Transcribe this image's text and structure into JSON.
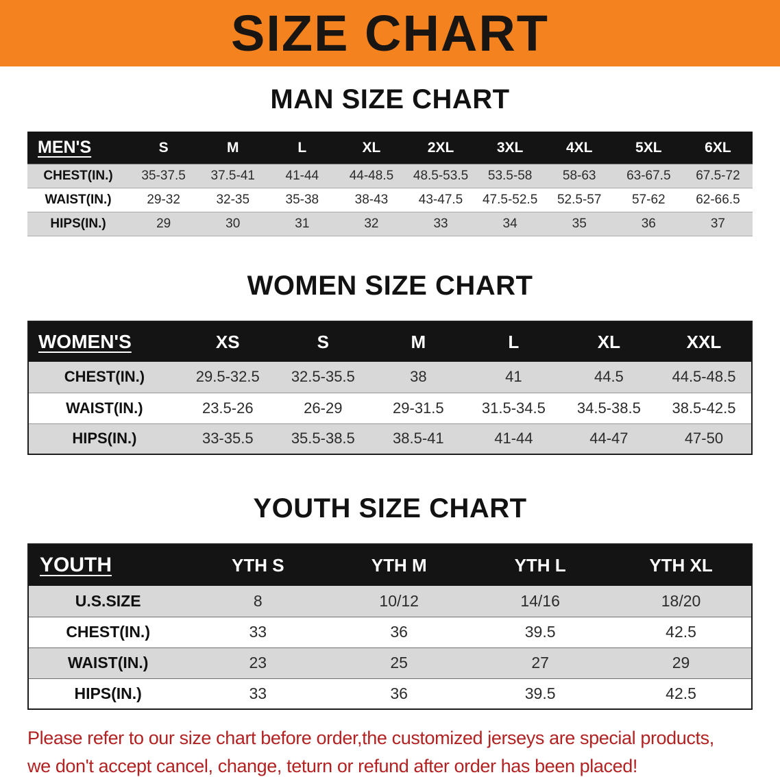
{
  "banner": {
    "title": "SIZE CHART"
  },
  "colors": {
    "banner_bg": "#F4831F",
    "table_header_bg": "#141414",
    "row_stripe": "#D8D8D8",
    "notice_text": "#B22222"
  },
  "chart_data": [
    {
      "type": "table",
      "title": "MAN SIZE CHART",
      "columns": [
        "MEN'S",
        "S",
        "M",
        "L",
        "XL",
        "2XL",
        "3XL",
        "4XL",
        "5XL",
        "6XL"
      ],
      "rows": [
        [
          "CHEST(IN.)",
          "35-37.5",
          "37.5-41",
          "41-44",
          "44-48.5",
          "48.5-53.5",
          "53.5-58",
          "58-63",
          "63-67.5",
          "67.5-72"
        ],
        [
          "WAIST(IN.)",
          "29-32",
          "32-35",
          "35-38",
          "38-43",
          "43-47.5",
          "47.5-52.5",
          "52.5-57",
          "57-62",
          "62-66.5"
        ],
        [
          "HIPS(IN.)",
          "29",
          "30",
          "31",
          "32",
          "33",
          "34",
          "35",
          "36",
          "37"
        ]
      ]
    },
    {
      "type": "table",
      "title": "WOMEN SIZE CHART",
      "columns": [
        "WOMEN'S",
        "XS",
        "S",
        "M",
        "L",
        "XL",
        "XXL"
      ],
      "rows": [
        [
          "CHEST(IN.)",
          "29.5-32.5",
          "32.5-35.5",
          "38",
          "41",
          "44.5",
          "44.5-48.5"
        ],
        [
          "WAIST(IN.)",
          "23.5-26",
          "26-29",
          "29-31.5",
          "31.5-34.5",
          "34.5-38.5",
          "38.5-42.5"
        ],
        [
          "HIPS(IN.)",
          "33-35.5",
          "35.5-38.5",
          "38.5-41",
          "41-44",
          "44-47",
          "47-50"
        ]
      ]
    },
    {
      "type": "table",
      "title": "YOUTH SIZE CHART",
      "columns": [
        "YOUTH",
        "YTH S",
        "YTH M",
        "YTH L",
        "YTH XL"
      ],
      "rows": [
        [
          "U.S.SIZE",
          "8",
          "10/12",
          "14/16",
          "18/20"
        ],
        [
          "CHEST(IN.)",
          "33",
          "36",
          "39.5",
          "42.5"
        ],
        [
          "WAIST(IN.)",
          "23",
          "25",
          "27",
          "29"
        ],
        [
          "HIPS(IN.)",
          "33",
          "36",
          "39.5",
          "42.5"
        ]
      ]
    }
  ],
  "footer": {
    "line1": "Please refer to our size chart before order,the customized jerseys are special products,",
    "line2": "we don't accept cancel, change, teturn or refund after order has been placed!"
  }
}
